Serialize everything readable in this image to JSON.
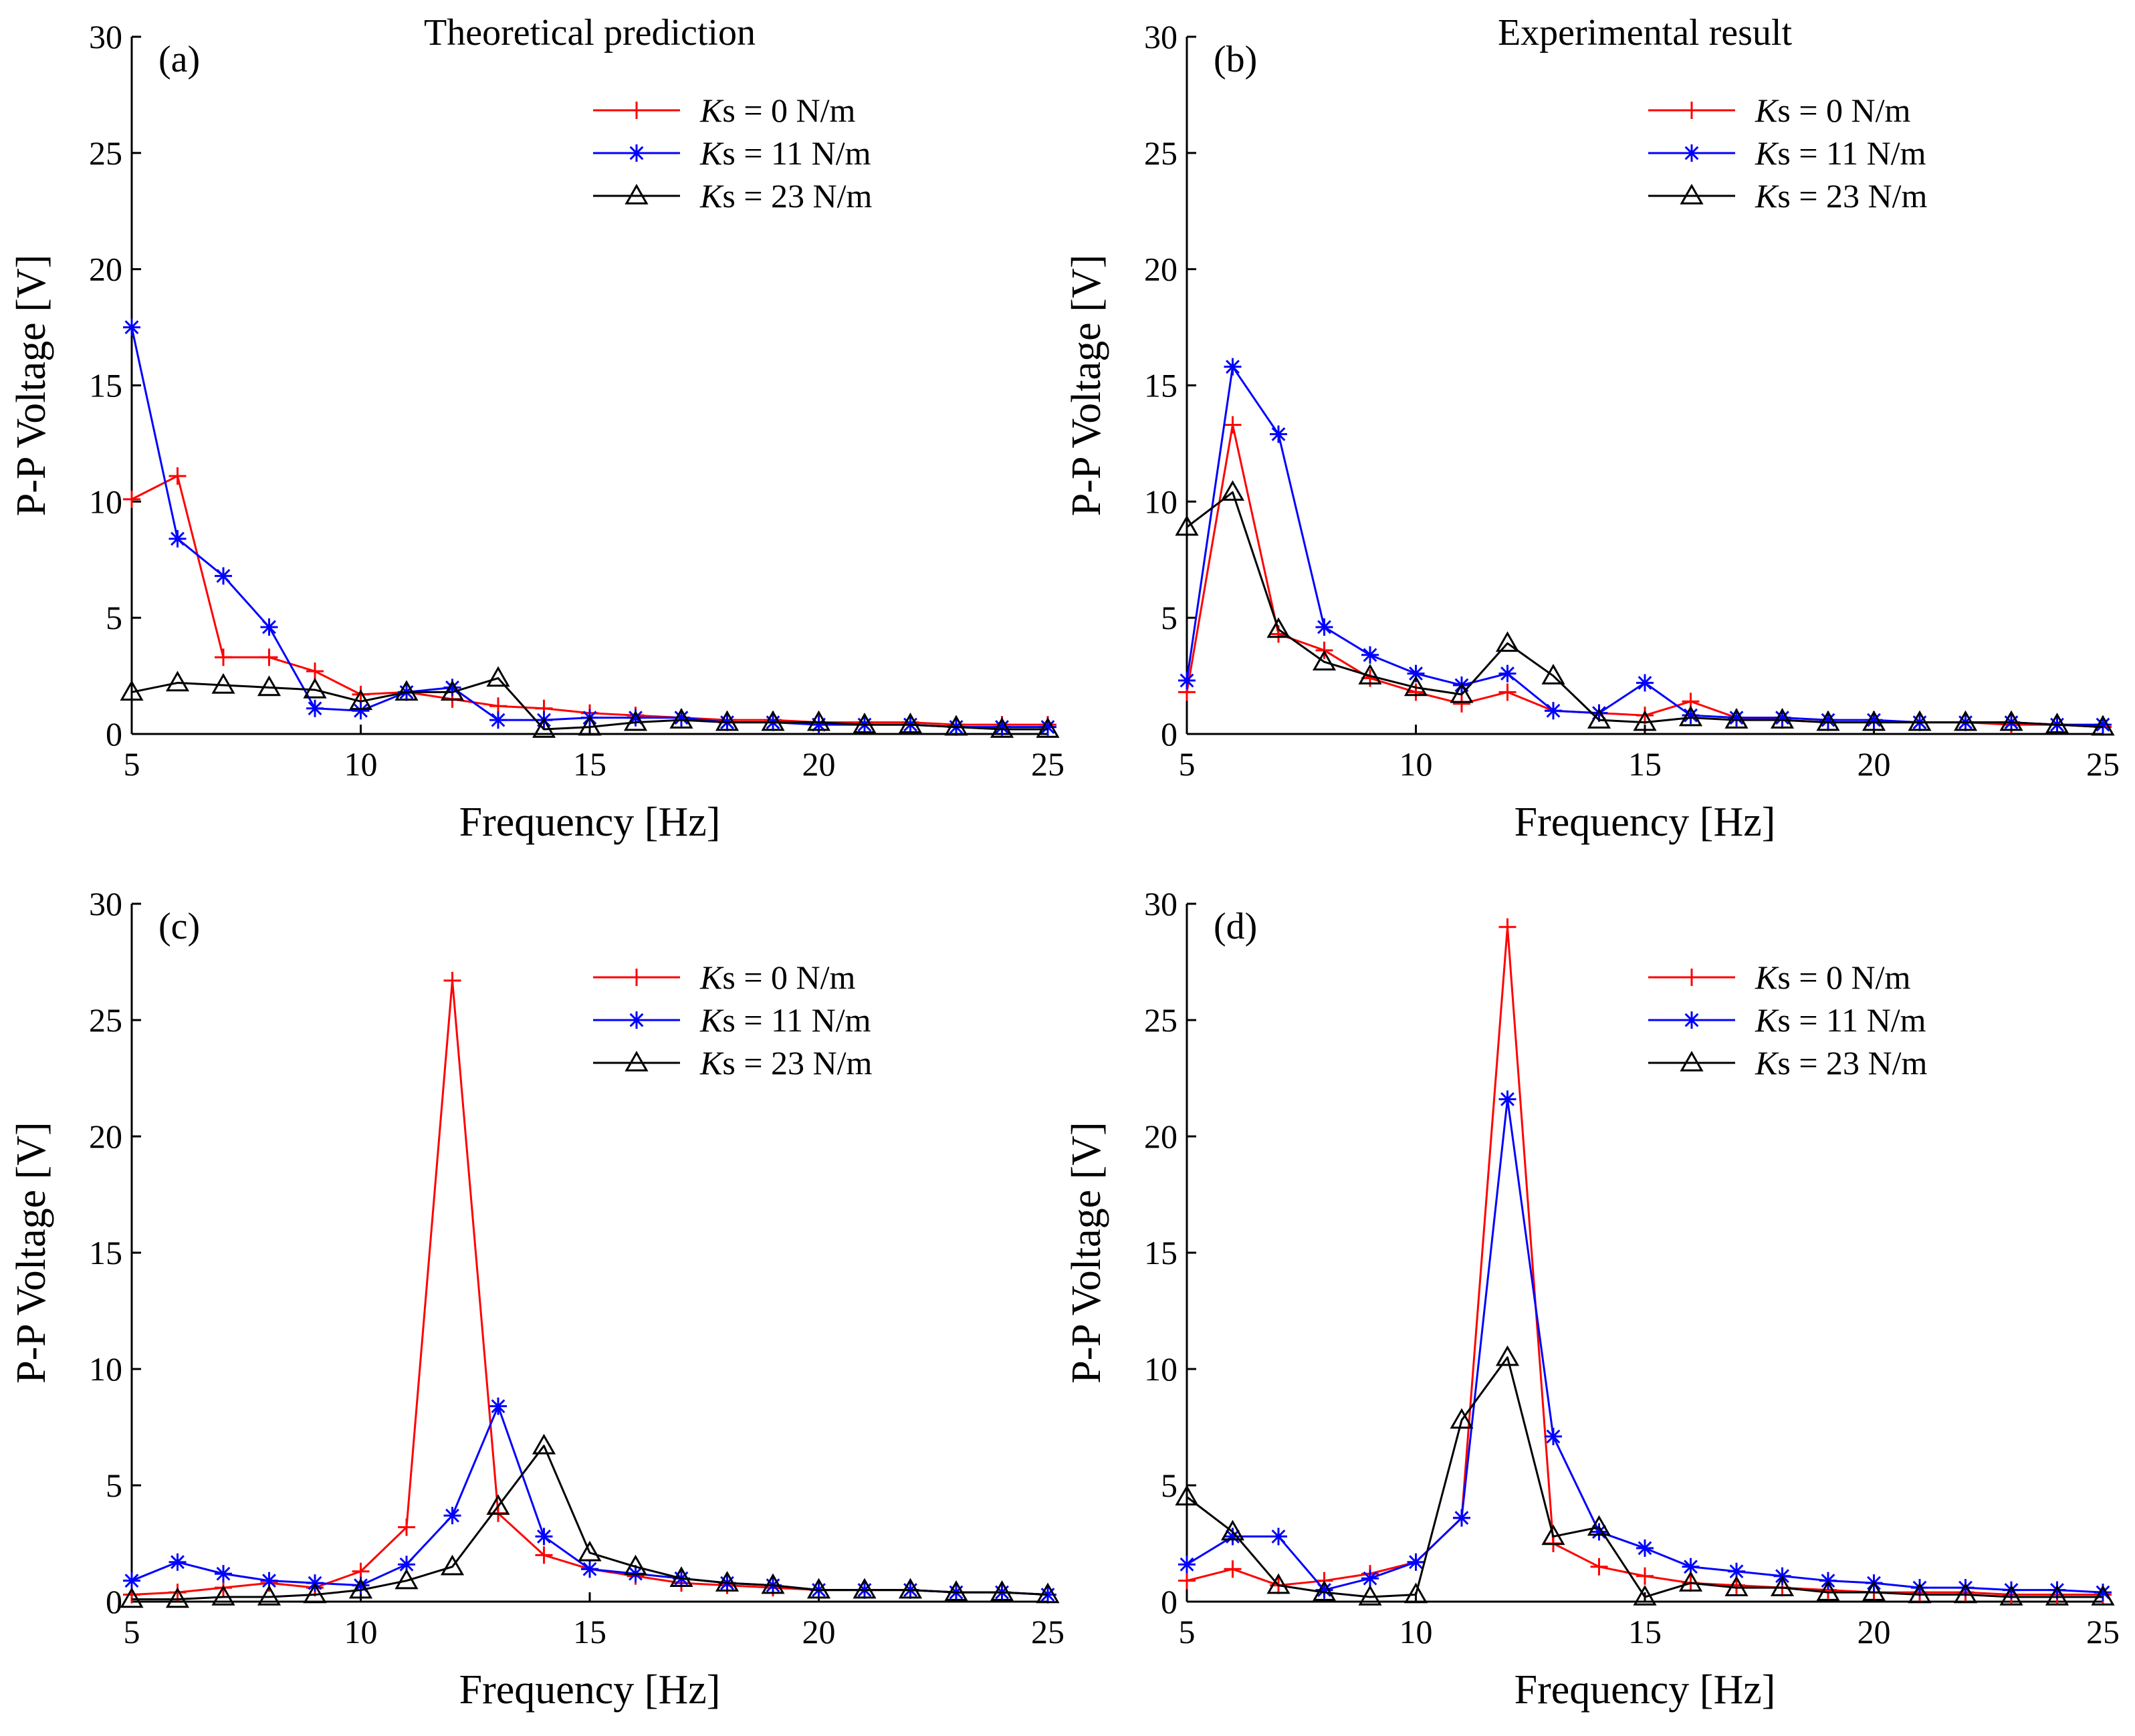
{
  "chart_data": [
    {
      "type": "line",
      "panel": "(a)",
      "title": "Theoretical prediction",
      "xlabel": "Frequency [Hz]",
      "ylabel": "P-P Voltage [V]",
      "xlim": [
        5,
        25
      ],
      "ylim": [
        0,
        30
      ],
      "xticks": [
        5,
        10,
        15,
        20,
        25
      ],
      "yticks": [
        0,
        5,
        10,
        15,
        20,
        25,
        30
      ],
      "grid": false,
      "legend": "top-right",
      "x": [
        5,
        6,
        7,
        8,
        9,
        10,
        11,
        12,
        13,
        14,
        15,
        16,
        17,
        18,
        19,
        20,
        21,
        22,
        23,
        24,
        25
      ],
      "series": [
        {
          "name_k": "K",
          "name_rest": "s = 0 N/m",
          "color": "#ff0000",
          "marker": "plus",
          "values": [
            10.1,
            11.1,
            3.3,
            3.3,
            2.7,
            1.7,
            1.8,
            1.5,
            1.2,
            1.1,
            0.9,
            0.8,
            0.7,
            0.6,
            0.6,
            0.5,
            0.5,
            0.5,
            0.4,
            0.4,
            0.4
          ]
        },
        {
          "name_k": "K",
          "name_rest": "s = 11 N/m",
          "color": "#0000ff",
          "marker": "asterisk",
          "values": [
            17.5,
            8.4,
            6.8,
            4.6,
            1.1,
            1.0,
            1.8,
            2.0,
            0.6,
            0.6,
            0.7,
            0.7,
            0.7,
            0.5,
            0.5,
            0.4,
            0.4,
            0.4,
            0.3,
            0.3,
            0.3
          ]
        },
        {
          "name_k": "K",
          "name_rest": "s = 23 N/m",
          "color": "#000000",
          "marker": "triangle",
          "values": [
            1.8,
            2.2,
            2.1,
            2.0,
            1.9,
            1.4,
            1.8,
            1.8,
            2.4,
            0.2,
            0.3,
            0.5,
            0.6,
            0.5,
            0.5,
            0.5,
            0.4,
            0.4,
            0.3,
            0.2,
            0.2
          ]
        }
      ]
    },
    {
      "type": "line",
      "panel": "(b)",
      "title": "Experimental result",
      "xlabel": "Frequency [Hz]",
      "ylabel": "P-P Voltage [V]",
      "xlim": [
        5,
        25
      ],
      "ylim": [
        0,
        30
      ],
      "xticks": [
        5,
        10,
        15,
        20,
        25
      ],
      "yticks": [
        0,
        5,
        10,
        15,
        20,
        25,
        30
      ],
      "grid": false,
      "legend": "top-right",
      "x": [
        5,
        6,
        7,
        8,
        9,
        10,
        11,
        12,
        13,
        14,
        15,
        16,
        17,
        18,
        19,
        20,
        21,
        22,
        23,
        24,
        25
      ],
      "series": [
        {
          "name_k": "K",
          "name_rest": "s = 0 N/m",
          "color": "#ff0000",
          "marker": "plus",
          "values": [
            1.8,
            13.3,
            4.3,
            3.6,
            2.4,
            1.8,
            1.3,
            1.8,
            1.0,
            0.9,
            0.8,
            1.4,
            0.7,
            0.6,
            0.5,
            0.5,
            0.5,
            0.5,
            0.4,
            0.4,
            0.3
          ]
        },
        {
          "name_k": "K",
          "name_rest": "s = 11 N/m",
          "color": "#0000ff",
          "marker": "asterisk",
          "values": [
            2.3,
            15.8,
            12.9,
            4.6,
            3.4,
            2.6,
            2.1,
            2.6,
            1.0,
            0.9,
            2.2,
            0.8,
            0.7,
            0.7,
            0.6,
            0.6,
            0.5,
            0.5,
            0.5,
            0.4,
            0.4
          ]
        },
        {
          "name_k": "K",
          "name_rest": "s = 23 N/m",
          "color": "#000000",
          "marker": "triangle",
          "values": [
            8.9,
            10.4,
            4.5,
            3.1,
            2.5,
            2.0,
            1.7,
            3.9,
            2.5,
            0.6,
            0.5,
            0.7,
            0.6,
            0.6,
            0.5,
            0.5,
            0.5,
            0.5,
            0.5,
            0.4,
            0.3
          ]
        }
      ]
    },
    {
      "type": "line",
      "panel": "(c)",
      "title": "",
      "xlabel": "Frequency [Hz]",
      "ylabel": "P-P Voltage [V]",
      "xlim": [
        5,
        25
      ],
      "ylim": [
        0,
        30
      ],
      "xticks": [
        5,
        10,
        15,
        20,
        25
      ],
      "yticks": [
        0,
        5,
        10,
        15,
        20,
        25,
        30
      ],
      "grid": false,
      "legend": "top-right",
      "x": [
        5,
        6,
        7,
        8,
        9,
        10,
        11,
        12,
        13,
        14,
        15,
        16,
        17,
        18,
        19,
        20,
        21,
        22,
        23,
        24,
        25
      ],
      "series": [
        {
          "name_k": "K",
          "name_rest": "s = 0 N/m",
          "color": "#ff0000",
          "marker": "plus",
          "values": [
            0.3,
            0.4,
            0.6,
            0.8,
            0.6,
            1.3,
            3.2,
            26.7,
            3.8,
            2.0,
            1.4,
            1.1,
            0.8,
            0.7,
            0.6,
            0.5,
            0.5,
            0.5,
            0.4,
            0.4,
            0.3
          ]
        },
        {
          "name_k": "K",
          "name_rest": "s = 11 N/m",
          "color": "#0000ff",
          "marker": "asterisk",
          "values": [
            0.9,
            1.7,
            1.2,
            0.9,
            0.8,
            0.7,
            1.6,
            3.7,
            8.4,
            2.8,
            1.4,
            1.2,
            1.0,
            0.8,
            0.7,
            0.5,
            0.5,
            0.5,
            0.4,
            0.4,
            0.3
          ]
        },
        {
          "name_k": "K",
          "name_rest": "s = 23 N/m",
          "color": "#000000",
          "marker": "triangle",
          "values": [
            0.1,
            0.1,
            0.2,
            0.2,
            0.3,
            0.5,
            0.9,
            1.5,
            4.1,
            6.7,
            2.1,
            1.5,
            1.0,
            0.8,
            0.7,
            0.5,
            0.5,
            0.5,
            0.4,
            0.4,
            0.3
          ]
        }
      ]
    },
    {
      "type": "line",
      "panel": "(d)",
      "title": "",
      "xlabel": "Frequency [Hz]",
      "ylabel": "P-P Voltage [V]",
      "xlim": [
        5,
        25
      ],
      "ylim": [
        0,
        30
      ],
      "xticks": [
        5,
        10,
        15,
        20,
        25
      ],
      "yticks": [
        0,
        5,
        10,
        15,
        20,
        25,
        30
      ],
      "grid": false,
      "legend": "top-right",
      "x": [
        5,
        6,
        7,
        8,
        9,
        10,
        11,
        12,
        13,
        14,
        15,
        16,
        17,
        18,
        19,
        20,
        21,
        22,
        23,
        24,
        25
      ],
      "series": [
        {
          "name_k": "K",
          "name_rest": "s = 0 N/m",
          "color": "#ff0000",
          "marker": "plus",
          "values": [
            0.9,
            1.4,
            0.7,
            0.9,
            1.2,
            1.7,
            3.6,
            29.0,
            2.5,
            1.5,
            1.1,
            0.8,
            0.7,
            0.6,
            0.5,
            0.4,
            0.4,
            0.4,
            0.3,
            0.3,
            0.3
          ]
        },
        {
          "name_k": "K",
          "name_rest": "s = 11 N/m",
          "color": "#0000ff",
          "marker": "asterisk",
          "values": [
            1.6,
            2.8,
            2.8,
            0.5,
            1.0,
            1.7,
            3.6,
            21.6,
            7.1,
            3.0,
            2.3,
            1.5,
            1.3,
            1.1,
            0.9,
            0.8,
            0.6,
            0.6,
            0.5,
            0.5,
            0.4
          ]
        },
        {
          "name_k": "K",
          "name_rest": "s = 23 N/m",
          "color": "#000000",
          "marker": "triangle",
          "values": [
            4.5,
            3.0,
            0.7,
            0.4,
            0.2,
            0.3,
            7.8,
            10.5,
            2.8,
            3.2,
            0.2,
            0.8,
            0.6,
            0.6,
            0.4,
            0.4,
            0.3,
            0.3,
            0.2,
            0.2,
            0.2
          ]
        }
      ]
    }
  ]
}
